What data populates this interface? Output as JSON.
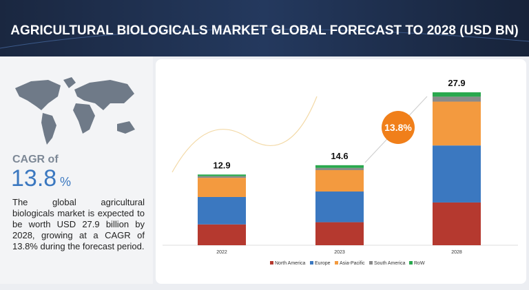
{
  "header": {
    "title": "AGRICULTURAL BIOLOGICALS MARKET GLOBAL FORECAST TO 2028 (USD BN)"
  },
  "cagr": {
    "label": "CAGR of",
    "value": "13.8",
    "unit": "%"
  },
  "description": "The global agricultural biologicals market is expected to be worth USD 27.9 billion by 2028, growing at a CAGR of 13.8% during the forecast period.",
  "chart_data": {
    "type": "stacked-bar",
    "categories": [
      "2022",
      "2023",
      "2028"
    ],
    "totals": [
      12.9,
      14.6,
      27.9
    ],
    "badge": "13.8%",
    "series": [
      {
        "name": "North America",
        "color": "#b5392f",
        "values": [
          3.8,
          4.2,
          7.8
        ]
      },
      {
        "name": "Europe",
        "color": "#3b78c0",
        "values": [
          5.0,
          5.6,
          10.4
        ]
      },
      {
        "name": "Asia-Pacific",
        "color": "#f39a3f",
        "values": [
          3.5,
          3.9,
          8.0
        ]
      },
      {
        "name": "South America",
        "color": "#8a8a8a",
        "values": [
          0.3,
          0.4,
          0.9
        ]
      },
      {
        "name": "RoW",
        "color": "#2aa84e",
        "values": [
          0.3,
          0.5,
          0.8
        ]
      }
    ]
  }
}
